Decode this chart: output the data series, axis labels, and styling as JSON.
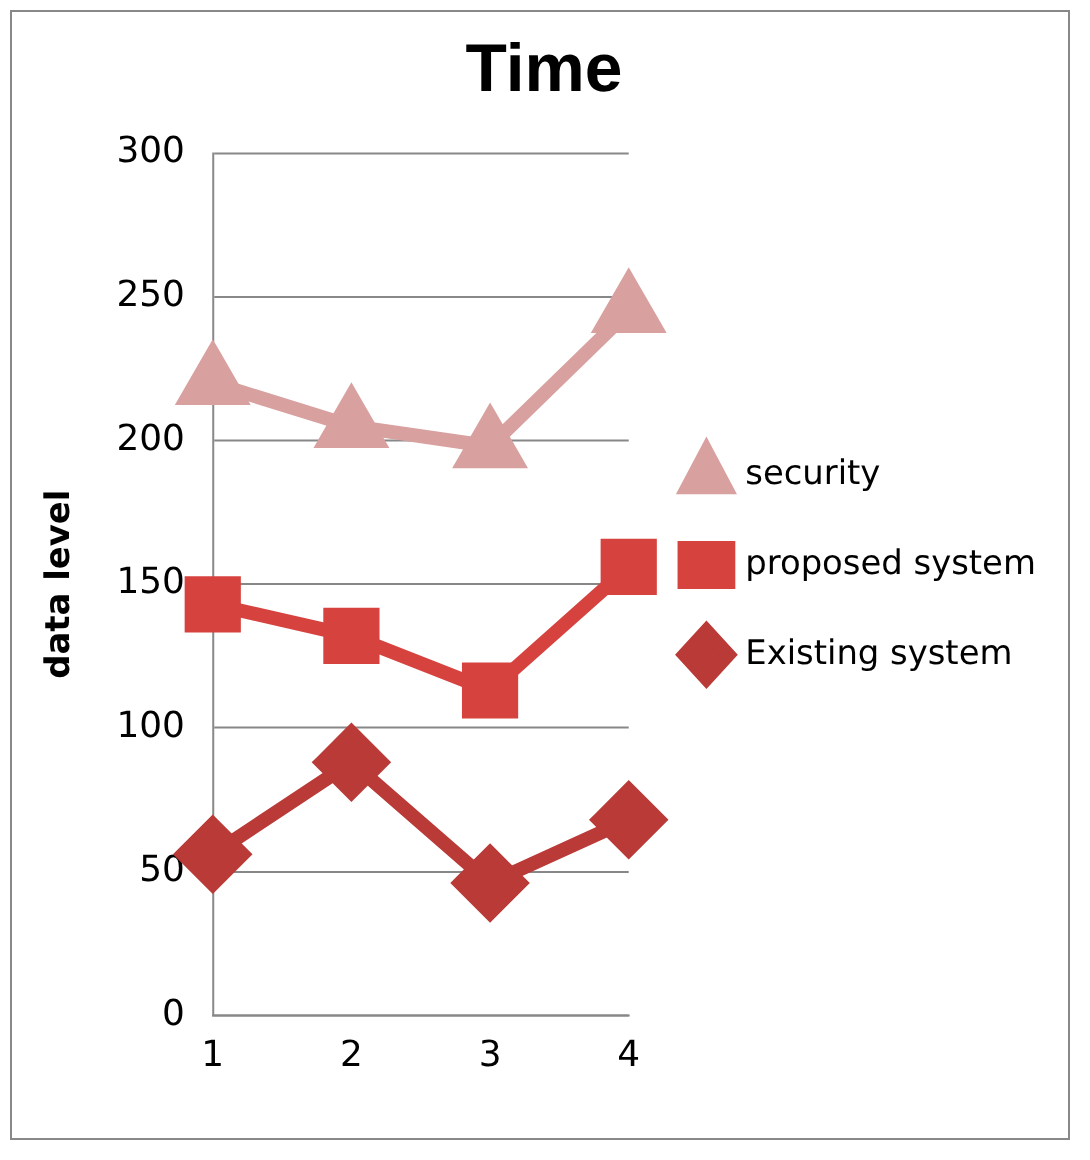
{
  "chart_data": {
    "type": "line",
    "title": "Time",
    "ylabel": "data level",
    "categories": [
      "1",
      "2",
      "3",
      "4"
    ],
    "series": [
      {
        "name": "security",
        "color": "#d9a0a0",
        "marker": "triangle",
        "values": [
          220,
          205,
          198,
          245
        ]
      },
      {
        "name": "proposed system",
        "color": "#d6433f",
        "marker": "square",
        "values": [
          143,
          132,
          113,
          156
        ]
      },
      {
        "name": "Existing system",
        "color": "#b93a36",
        "marker": "diamond",
        "values": [
          56,
          88,
          46,
          68
        ]
      }
    ],
    "ylim": [
      0,
      300
    ],
    "yticks": [
      0,
      50,
      100,
      150,
      200,
      250,
      300
    ],
    "grid": "y",
    "legend": "right"
  }
}
